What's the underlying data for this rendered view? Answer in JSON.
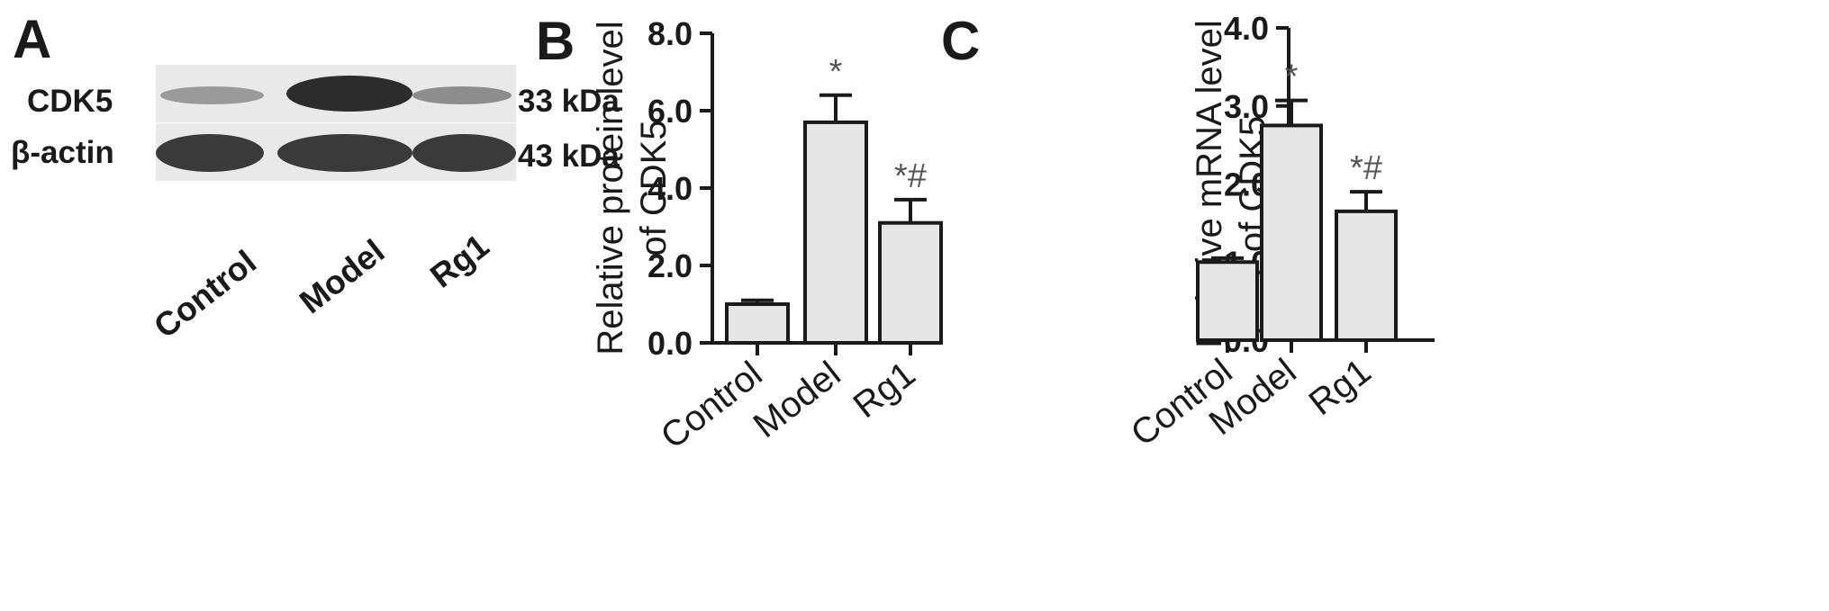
{
  "panels": {
    "a": "A",
    "b": "B",
    "c": "C"
  },
  "blot": {
    "rows": [
      {
        "protein": "CDK5",
        "mw": "33 kDa"
      },
      {
        "protein": "β-actin",
        "mw": "43 kDa"
      }
    ],
    "lanes": [
      "Control",
      "Model",
      "Rg1"
    ]
  },
  "chart_data": [
    {
      "type": "bar",
      "categories": [
        "Control",
        "Model",
        "Rg1"
      ],
      "values": [
        1.0,
        5.7,
        3.1
      ],
      "errors": [
        0.1,
        0.7,
        0.6
      ],
      "annotations": [
        "",
        "*",
        "*#"
      ],
      "ylabel": "Relative protein level\nof CDK5",
      "xlabel": "",
      "ylim": [
        0,
        8
      ],
      "yticks": [
        "0.0",
        "2.0",
        "4.0",
        "6.0",
        "8.0"
      ],
      "bar_color": "#e6e6e6",
      "grid": false
    },
    {
      "type": "bar",
      "categories": [
        "Control",
        "Model",
        "Rg1"
      ],
      "values": [
        1.0,
        2.75,
        1.65
      ],
      "errors": [
        0.05,
        0.32,
        0.25
      ],
      "annotations": [
        "",
        "*",
        "*#"
      ],
      "ylabel": "Relative mRNA level\nof CDK5",
      "xlabel": "",
      "ylim": [
        0,
        4
      ],
      "yticks": [
        "0.0",
        "1.0",
        "2.0",
        "3.0",
        "4.0"
      ],
      "bar_color": "#e6e6e6",
      "grid": false
    }
  ]
}
